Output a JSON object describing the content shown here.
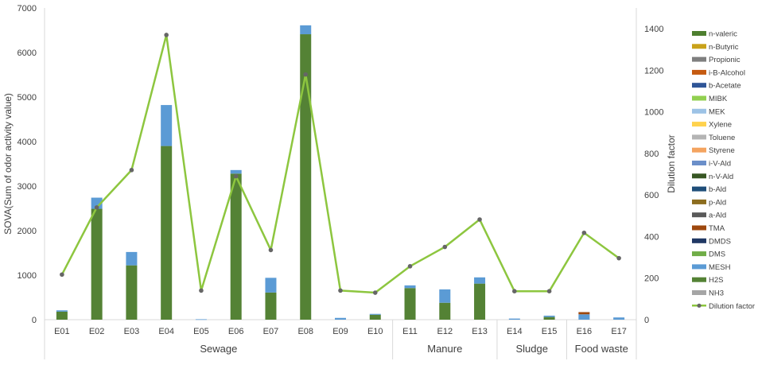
{
  "chart_data": {
    "type": "bar",
    "subtype": "stacked-bar-with-line",
    "categories": [
      "E01",
      "E02",
      "E03",
      "E04",
      "E05",
      "E06",
      "E07",
      "E08",
      "E09",
      "E10",
      "E11",
      "E12",
      "E13",
      "E14",
      "E15",
      "E16",
      "E17"
    ],
    "groups": [
      {
        "label": "Sewage",
        "from": 0,
        "to": 9
      },
      {
        "label": "Manure",
        "from": 10,
        "to": 12
      },
      {
        "label": "Sludge",
        "from": 13,
        "to": 14
      },
      {
        "label": "Food waste",
        "from": 15,
        "to": 16
      }
    ],
    "ylabel": "SOVA(Sum of odor activity value)",
    "y2label": "Dilution factor",
    "ylim": [
      0,
      7000
    ],
    "yticks": [
      0,
      1000,
      2000,
      3000,
      4000,
      5000,
      6000,
      7000
    ],
    "y2lim": [
      0,
      1500
    ],
    "y2ticks": [
      0,
      200,
      400,
      600,
      800,
      1000,
      1200,
      1400
    ],
    "series": [
      {
        "name": "n-valeric",
        "color": "#4e7f2f",
        "values": [
          0,
          0,
          0,
          0,
          0,
          0,
          0,
          0,
          0,
          0,
          0,
          0,
          0,
          0,
          0,
          0,
          0
        ]
      },
      {
        "name": "n-Butyric",
        "color": "#c9a21a",
        "values": [
          0,
          0,
          0,
          0,
          0,
          0,
          0,
          0,
          0,
          0,
          0,
          0,
          0,
          0,
          0,
          0,
          0
        ]
      },
      {
        "name": "Propionic",
        "color": "#7f7f7f",
        "values": [
          0,
          0,
          0,
          0,
          0,
          0,
          0,
          0,
          0,
          0,
          0,
          0,
          0,
          0,
          0,
          0,
          0
        ]
      },
      {
        "name": "i-B-Alcohol",
        "color": "#c55a11",
        "values": [
          0,
          0,
          0,
          0,
          0,
          0,
          0,
          0,
          0,
          0,
          0,
          0,
          0,
          0,
          0,
          0,
          0
        ]
      },
      {
        "name": "b-Acetate",
        "color": "#2f5597",
        "values": [
          0,
          0,
          0,
          0,
          0,
          0,
          0,
          0,
          0,
          0,
          0,
          0,
          0,
          0,
          0,
          0,
          0
        ]
      },
      {
        "name": "MIBK",
        "color": "#92d050",
        "values": [
          0,
          0,
          0,
          0,
          0,
          0,
          0,
          0,
          0,
          0,
          0,
          0,
          0,
          0,
          0,
          0,
          0
        ]
      },
      {
        "name": "MEK",
        "color": "#9dc3e6",
        "values": [
          0,
          0,
          0,
          0,
          0,
          0,
          0,
          0,
          0,
          0,
          0,
          0,
          0,
          0,
          0,
          0,
          0
        ]
      },
      {
        "name": "Xylene",
        "color": "#ffd24d",
        "values": [
          0,
          0,
          0,
          0,
          0,
          0,
          0,
          0,
          0,
          0,
          0,
          0,
          0,
          0,
          0,
          0,
          0
        ]
      },
      {
        "name": "Toluene",
        "color": "#b4b4b4",
        "values": [
          0,
          0,
          0,
          0,
          0,
          0,
          0,
          0,
          0,
          0,
          0,
          0,
          0,
          0,
          0,
          0,
          0
        ]
      },
      {
        "name": "Styrene",
        "color": "#f4a460",
        "values": [
          0,
          0,
          0,
          0,
          0,
          0,
          0,
          0,
          0,
          0,
          0,
          0,
          0,
          0,
          0,
          0,
          0
        ]
      },
      {
        "name": "i-V-Ald",
        "color": "#6b8fc9",
        "values": [
          0,
          0,
          0,
          0,
          0,
          0,
          0,
          0,
          0,
          0,
          0,
          0,
          0,
          0,
          0,
          0,
          0
        ]
      },
      {
        "name": "n-V-Ald",
        "color": "#375623",
        "values": [
          0,
          0,
          0,
          0,
          0,
          0,
          0,
          0,
          0,
          0,
          0,
          0,
          0,
          0,
          0,
          0,
          0
        ]
      },
      {
        "name": "b-Ald",
        "color": "#1f4e79",
        "values": [
          0,
          0,
          0,
          0,
          0,
          0,
          0,
          0,
          0,
          0,
          0,
          0,
          0,
          0,
          0,
          0,
          0
        ]
      },
      {
        "name": "p-Ald",
        "color": "#8c6d1f",
        "values": [
          0,
          0,
          0,
          0,
          0,
          0,
          0,
          0,
          0,
          0,
          0,
          0,
          0,
          0,
          0,
          0,
          0
        ]
      },
      {
        "name": "a-Ald",
        "color": "#595959",
        "values": [
          0,
          0,
          0,
          0,
          0,
          0,
          0,
          0,
          0,
          0,
          0,
          0,
          0,
          0,
          0,
          0,
          0
        ]
      },
      {
        "name": "TMA",
        "color": "#9e480e",
        "values": [
          0,
          0,
          0,
          0,
          0,
          0,
          0,
          0,
          0,
          0,
          0,
          0,
          0,
          0,
          0,
          50,
          0
        ]
      },
      {
        "name": "DMDS",
        "color": "#203864",
        "values": [
          0,
          0,
          0,
          0,
          0,
          0,
          0,
          0,
          0,
          0,
          0,
          0,
          0,
          0,
          0,
          0,
          0
        ]
      },
      {
        "name": "DMS",
        "color": "#70ad47",
        "values": [
          0,
          0,
          0,
          0,
          0,
          0,
          0,
          0,
          0,
          0,
          0,
          0,
          0,
          0,
          0,
          0,
          0
        ]
      },
      {
        "name": "MESH",
        "color": "#5b9bd5",
        "values": [
          30,
          250,
          300,
          920,
          10,
          80,
          330,
          200,
          40,
          20,
          60,
          300,
          140,
          25,
          30,
          120,
          50
        ]
      },
      {
        "name": "H2S",
        "color": "#548235",
        "values": [
          180,
          2490,
          1220,
          3900,
          0,
          3280,
          610,
          6410,
          0,
          110,
          710,
          380,
          810,
          0,
          60,
          0,
          0
        ]
      },
      {
        "name": "NH3",
        "color": "#a5a5a5",
        "values": [
          0,
          0,
          0,
          0,
          0,
          0,
          0,
          0,
          0,
          0,
          0,
          0,
          0,
          0,
          0,
          0,
          0
        ]
      }
    ],
    "line": {
      "name": "Dilution factor",
      "color": "#8dc63f",
      "marker_color": "#666666",
      "values": [
        217,
        540,
        720,
        1370,
        140,
        690,
        335,
        1180,
        140,
        130,
        257,
        350,
        482,
        137,
        137,
        418,
        296
      ]
    }
  }
}
